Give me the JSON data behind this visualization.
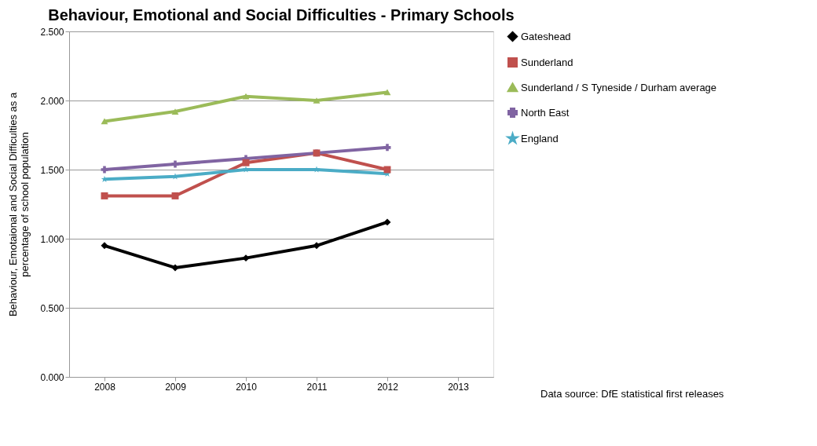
{
  "chart_data": {
    "type": "line",
    "title": "Behaviour, Emotional and Social Difficulties - Primary Schools",
    "ylabel": "Behaviour, Emotaional and Social Difficulties as a percentage of school population",
    "categories": [
      "2008",
      "2009",
      "2010",
      "2011",
      "2012",
      "2013"
    ],
    "series": [
      {
        "name": "Gateshead",
        "color": "#000000",
        "marker": "diamond",
        "values": [
          0.95,
          0.79,
          0.86,
          0.95,
          1.12,
          null
        ]
      },
      {
        "name": "Sunderland",
        "color": "#c0504d",
        "marker": "square",
        "values": [
          1.31,
          1.31,
          1.55,
          1.62,
          1.5,
          null
        ]
      },
      {
        "name": "Sunderland / S Tyneside / Durham average",
        "color": "#9bbb59",
        "marker": "triangle",
        "values": [
          1.85,
          1.92,
          2.03,
          2.0,
          2.06,
          null
        ]
      },
      {
        "name": "North East",
        "color": "#8064a2",
        "marker": "cross",
        "values": [
          1.5,
          1.54,
          1.58,
          1.62,
          1.66,
          null
        ]
      },
      {
        "name": "England",
        "color": "#4bacc6",
        "marker": "star",
        "values": [
          1.43,
          1.45,
          1.5,
          1.5,
          1.47,
          null
        ]
      }
    ],
    "ylim": [
      0,
      2.5
    ],
    "yticks": [
      {
        "value": 0,
        "label": "0.000"
      },
      {
        "value": 0.5,
        "label": "0.500"
      },
      {
        "value": 1,
        "label": "1.000"
      },
      {
        "value": 1.5,
        "label": "1.500"
      },
      {
        "value": 2,
        "label": "2.000"
      },
      {
        "value": 2.5,
        "label": "2.500"
      }
    ],
    "grid": "y",
    "legend": "right",
    "line_style": "solid",
    "annotations": [
      "Data source: DfE statistical first releases"
    ]
  }
}
